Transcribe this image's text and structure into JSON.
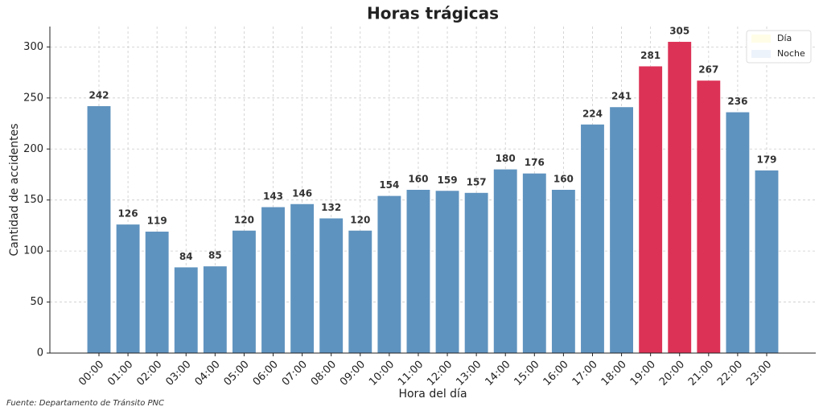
{
  "chart_data": {
    "type": "bar",
    "title": "Horas trágicas",
    "x_label": "Hora del día",
    "y_label": "Cantidad de accidentes",
    "source": "Fuente: Departamento de Tránsito PNC",
    "categories": [
      "00:00",
      "01:00",
      "02:00",
      "03:00",
      "04:00",
      "05:00",
      "06:00",
      "07:00",
      "08:00",
      "09:00",
      "10:00",
      "11:00",
      "12:00",
      "13:00",
      "14:00",
      "15:00",
      "16:00",
      "17:00",
      "18:00",
      "19:00",
      "20:00",
      "21:00",
      "22:00",
      "23:00"
    ],
    "values": [
      242,
      126,
      119,
      84,
      85,
      120,
      143,
      146,
      132,
      120,
      154,
      160,
      159,
      157,
      180,
      176,
      160,
      224,
      241,
      281,
      305,
      267,
      236,
      179
    ],
    "color": "#5f93bf",
    "highlight_color": "#dc3256",
    "highlight": [
      "19:00",
      "20:00",
      "21:00"
    ],
    "ylim": [
      0,
      320
    ],
    "yticks": [
      0,
      50,
      100,
      150,
      200,
      250,
      300
    ],
    "grid": true,
    "shade_legend": [
      {
        "name": "Día",
        "color": "#fffde6"
      },
      {
        "name": "Noche",
        "color": "#edf3fb"
      }
    ],
    "shade_bands": [
      {
        "from": "00:00",
        "to": "05:00",
        "legend": 1
      },
      {
        "from": "06:00",
        "to": "17:00",
        "legend": 0
      },
      {
        "from": "18:00",
        "to": "23:00",
        "legend": 1
      }
    ],
    "legend_position": "upper right"
  }
}
